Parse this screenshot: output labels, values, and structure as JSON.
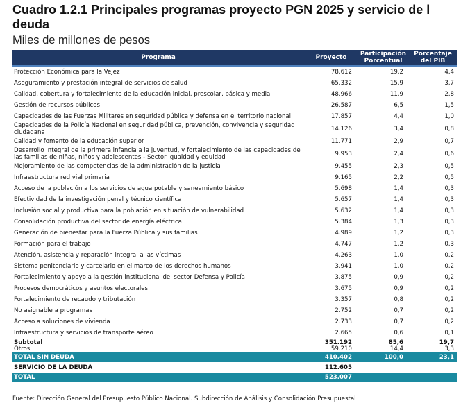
{
  "header": {
    "title_lines": [
      "Cuadro 1.2.1 Principales programas proyecto PGN 2025 y servicio de l",
      "deuda"
    ],
    "subtitle": "Miles de millones de pesos"
  },
  "table": {
    "columns": [
      "Programa",
      "Proyecto",
      "Participación Porcentual",
      "Porcentaje del PIB"
    ],
    "rows": [
      [
        "Protección Económica para la Vejez",
        "78.612",
        "19,2",
        "4,4"
      ],
      [
        "Aseguramiento y prestación integral de servicios de salud",
        "65.332",
        "15,9",
        "3,7"
      ],
      [
        "Calidad, cobertura y fortalecimiento de la educación inicial, prescolar, básica y media",
        "48.966",
        "11,9",
        "2,8"
      ],
      [
        "Gestión de recursos públicos",
        "26.587",
        "6,5",
        "1,5"
      ],
      [
        "Capacidades de las Fuerzas Militares en seguridad pública y defensa en el territorio nacional",
        "17.857",
        "4,4",
        "1,0"
      ],
      [
        "Capacidades de la Policía Nacional en seguridad pública, prevención, convivencia y seguridad ciudadana",
        "14.126",
        "3,4",
        "0,8"
      ],
      [
        "Calidad y fomento de la educación superior",
        "11.771",
        "2,9",
        "0,7"
      ],
      [
        "Desarrollo integral de la primera infancia a la juventud, y fortalecimiento de las capacidades de las familias de niñas, niños y adolescentes - Sector igualdad y equidad",
        "9.953",
        "2,4",
        "0,6"
      ],
      [
        "Mejoramiento de las competencias de la administración de la justicia",
        "9.455",
        "2,3",
        "0,5"
      ],
      [
        "Infraestructura red vial primaria",
        "9.165",
        "2,2",
        "0,5"
      ],
      [
        "Acceso de la población a los servicios de agua potable y saneamiento básico",
        "5.698",
        "1,4",
        "0,3"
      ],
      [
        "Efectividad de la investigación penal y técnico científica",
        "5.657",
        "1,4",
        "0,3"
      ],
      [
        "Inclusión social y productiva para la población en situación de vulnerabilidad",
        "5.632",
        "1,4",
        "0,3"
      ],
      [
        "Consolidación productiva del sector de energía eléctrica",
        "5.384",
        "1,3",
        "0,3"
      ],
      [
        "Generación de bienestar para la Fuerza Pública y sus familias",
        "4.989",
        "1,2",
        "0,3"
      ],
      [
        "Formación para el trabajo",
        "4.747",
        "1,2",
        "0,3"
      ],
      [
        "Atención, asistencia  y reparación integral a las víctimas",
        "4.263",
        "1,0",
        "0,2"
      ],
      [
        "Sistema penitenciario y carcelario en el marco de los derechos humanos",
        "3.941",
        "1,0",
        "0,2"
      ],
      [
        "Fortalecimiento y apoyo a la gestión institucional del sector Defensa y Policía",
        "3.875",
        "0,9",
        "0,2"
      ],
      [
        "Procesos democráticos y asuntos electorales",
        "3.675",
        "0,9",
        "0,2"
      ],
      [
        "Fortalecimiento de recaudo y tributación",
        "3.357",
        "0,8",
        "0,2"
      ],
      [
        "No asignable a programas",
        "2.752",
        "0,7",
        "0,2"
      ],
      [
        "Acceso a soluciones de vivienda",
        "2.733",
        "0,7",
        "0,2"
      ],
      [
        "Infraestructura y servicios de transporte aéreo",
        "2.665",
        "0,6",
        "0,1"
      ]
    ],
    "summary": [
      [
        "Subtotal",
        "351.192",
        "85,6",
        "19,7"
      ],
      [
        "Otros",
        "59.210",
        "14,4",
        "3,3"
      ],
      [
        "TOTAL SIN DEUDA",
        "410.402",
        "100,0",
        "23,1"
      ],
      [
        "SERVICIO DE LA DEUDA",
        "112.605"
      ],
      [
        "TOTAL",
        "523.007"
      ]
    ]
  },
  "footer": {
    "source": "Fuente: Dirección General del Presupuesto Público Nacional. Subdirección de Análisis y Consolidación Presupuestal"
  }
}
